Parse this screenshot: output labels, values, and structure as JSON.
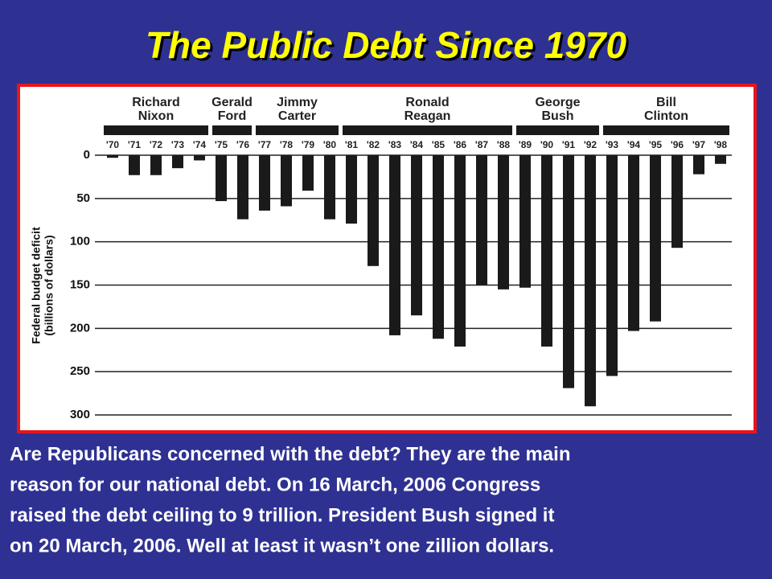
{
  "title": "The Public Debt Since 1970",
  "chart_data": {
    "type": "bar",
    "presidents": [
      {
        "lines": [
          "Richard",
          "Nixon"
        ]
      },
      {
        "lines": [
          "Gerald",
          "Ford"
        ]
      },
      {
        "lines": [
          "Jimmy",
          "Carter"
        ]
      },
      {
        "lines": [
          "Ronald",
          "Reagan"
        ]
      },
      {
        "lines": [
          "George",
          "Bush"
        ]
      },
      {
        "lines": [
          "Bill",
          "Clinton"
        ]
      }
    ],
    "categories": [
      "'70",
      "'71",
      "'72",
      "'73",
      "'74",
      "'75",
      "'76",
      "'77",
      "'78",
      "'79",
      "'80",
      "'81",
      "'82",
      "'83",
      "'84",
      "'85",
      "'86",
      "'87",
      "'88",
      "'89",
      "'90",
      "'91",
      "'92",
      "'93",
      "'94",
      "'95",
      "'96",
      "'97",
      "'98"
    ],
    "values": [
      3,
      23,
      23,
      15,
      6,
      53,
      74,
      64,
      59,
      41,
      74,
      79,
      128,
      208,
      185,
      212,
      221,
      150,
      155,
      153,
      221,
      269,
      290,
      255,
      203,
      192,
      107,
      22,
      10
    ],
    "color": "#1a1a1a",
    "y_label_lines": [
      "Federal budget deficit",
      "(billions of dollars)"
    ],
    "ylim": [
      0,
      300
    ],
    "yticks": [
      0,
      50,
      100,
      150,
      200,
      250,
      300
    ],
    "y_inverted": true,
    "grid": true
  },
  "body_lines": [
    "Are Republicans concerned with the debt?  They are the main",
    "reason for our national debt. On 16 March, 2006 Congress",
    "raised the debt ceiling to 9 trillion.  President Bush signed it",
    "on 20 March, 2006.  Well at least it wasn’t one zillion dollars."
  ]
}
